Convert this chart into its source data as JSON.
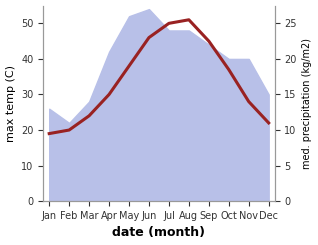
{
  "months": [
    "Jan",
    "Feb",
    "Mar",
    "Apr",
    "May",
    "Jun",
    "Jul",
    "Aug",
    "Sep",
    "Oct",
    "Nov",
    "Dec"
  ],
  "month_indices": [
    0,
    1,
    2,
    3,
    4,
    5,
    6,
    7,
    8,
    9,
    10,
    11
  ],
  "temperature": [
    19,
    20,
    24,
    30,
    38,
    46,
    50,
    51,
    45,
    37,
    28,
    22
  ],
  "precipitation": [
    13,
    11,
    14,
    21,
    26,
    27,
    24,
    24,
    22,
    20,
    20,
    15
  ],
  "temp_color": "#992222",
  "precip_fill_color": "#b8c0e8",
  "temp_ylim": [
    0,
    55
  ],
  "precip_ylim": [
    0,
    27.5
  ],
  "temp_yticks": [
    0,
    10,
    20,
    30,
    40,
    50
  ],
  "precip_yticks": [
    0,
    5,
    10,
    15,
    20,
    25
  ],
  "xlabel": "date (month)",
  "ylabel_left": "max temp (C)",
  "ylabel_right": "med. precipitation (kg/m2)",
  "bg_color": "#ffffff",
  "line_width": 2.2,
  "spine_color": "#999999",
  "tick_color": "#333333",
  "label_fontsize": 8,
  "tick_fontsize": 7,
  "xlabel_fontsize": 9
}
